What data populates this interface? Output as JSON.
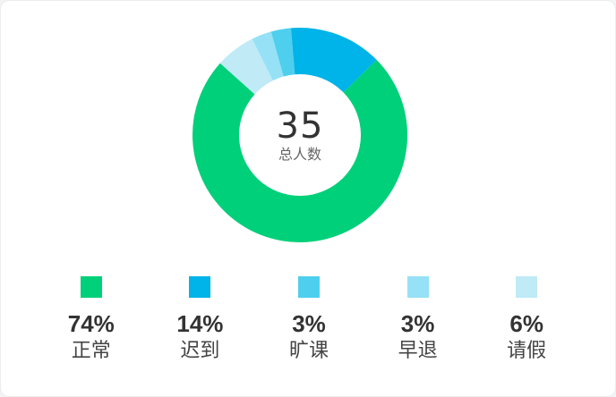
{
  "summary": {
    "total_value": "35",
    "total_label": "总人数"
  },
  "chart_data": {
    "type": "pie",
    "categories": [
      "正常",
      "迟到",
      "旷课",
      "早退",
      "请假"
    ],
    "values": [
      74,
      14,
      3,
      3,
      6
    ],
    "colors": [
      "#00d079",
      "#00b3e8",
      "#4fcfee",
      "#96e1f5",
      "#bfeaf6"
    ]
  },
  "legend": [
    {
      "percent": "74%",
      "label": "正常",
      "color": "#00d079"
    },
    {
      "percent": "14%",
      "label": "迟到",
      "color": "#00b3e8"
    },
    {
      "percent": "3%",
      "label": "旷课",
      "color": "#4fcfee"
    },
    {
      "percent": "3%",
      "label": "早退",
      "color": "#96e1f5"
    },
    {
      "percent": "6%",
      "label": "请假",
      "color": "#bfeaf6"
    }
  ]
}
